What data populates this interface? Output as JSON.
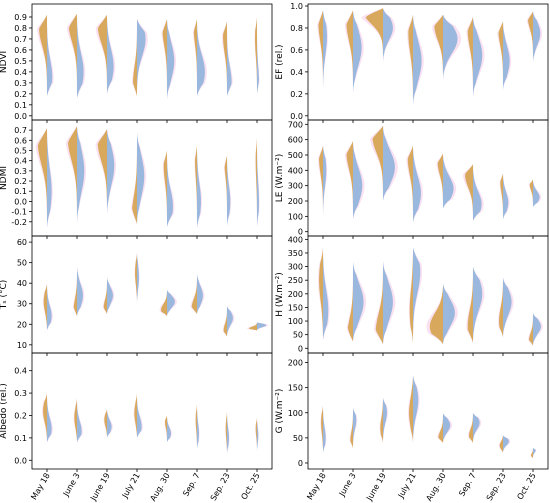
{
  "colors": {
    "upper_half": "#d4a24c",
    "lower_half": "#8fb3db",
    "overlap": "#b8b46e",
    "outline": "#f5c9e6"
  },
  "chart_data": [
    {
      "type": "violin",
      "panel": "NDVI",
      "ylabel": "NDVI",
      "ylim": [
        -0.02,
        1.0
      ],
      "yticks": [
        "0.0",
        "0.1",
        "0.2",
        "0.3",
        "0.4",
        "0.5",
        "0.6",
        "0.7",
        "0.8",
        "0.9"
      ],
      "ytick_values": [
        0,
        0.1,
        0.2,
        0.3,
        0.4,
        0.5,
        0.6,
        0.7,
        0.8,
        0.9
      ],
      "show_x_labels": false,
      "series": [
        {
          "name": "upper",
          "color": "upper_half"
        },
        {
          "name": "lower",
          "color": "lower_half"
        }
      ],
      "violins": [
        {
          "min": 0.18,
          "max": 0.92,
          "mid": 0.48,
          "upper_width": 0.12,
          "upper_peak": 0.8,
          "lower_width": 0.08,
          "lower_peak": 0.35
        },
        {
          "min": 0.16,
          "max": 0.93,
          "mid": 0.55,
          "upper_width": 0.13,
          "upper_peak": 0.85,
          "lower_width": 0.1,
          "lower_peak": 0.4
        },
        {
          "min": 0.2,
          "max": 0.92,
          "mid": 0.55,
          "upper_width": 0.14,
          "upper_peak": 0.82,
          "lower_width": 0.1,
          "lower_peak": 0.45
        },
        {
          "min": 0.18,
          "max": 0.88,
          "mid": 0.35,
          "upper_width": 0.06,
          "upper_peak": 0.3,
          "lower_width": 0.13,
          "lower_peak": 0.7
        },
        {
          "min": 0.15,
          "max": 0.88,
          "mid": 0.65,
          "upper_width": 0.07,
          "upper_peak": 0.8,
          "lower_width": 0.11,
          "lower_peak": 0.5
        },
        {
          "min": 0.18,
          "max": 0.88,
          "mid": 0.6,
          "upper_width": 0.05,
          "upper_peak": 0.8,
          "lower_width": 0.12,
          "lower_peak": 0.4
        },
        {
          "min": 0.18,
          "max": 0.86,
          "mid": 0.6,
          "upper_width": 0.06,
          "upper_peak": 0.72,
          "lower_width": 0.07,
          "lower_peak": 0.3
        },
        {
          "min": 0.2,
          "max": 0.9,
          "mid": 0.55,
          "upper_width": 0.03,
          "upper_peak": 0.7,
          "lower_width": 0.03,
          "lower_peak": 0.3
        }
      ]
    },
    {
      "type": "violin",
      "panel": "EF",
      "ylabel": "EF (rel.)",
      "ylim": [
        -0.02,
        1.0
      ],
      "yticks": [
        "0.0",
        "0.2",
        "0.4",
        "0.6",
        "0.8",
        "1.0"
      ],
      "ytick_values": [
        0,
        0.2,
        0.4,
        0.6,
        0.8,
        1.0
      ],
      "show_x_labels": false,
      "violins": [
        {
          "min": 0.2,
          "max": 0.96,
          "mid": 0.75,
          "upper_width": 0.07,
          "upper_peak": 0.85,
          "lower_width": 0.06,
          "lower_peak": 0.72
        },
        {
          "min": 0.2,
          "max": 0.96,
          "mid": 0.6,
          "upper_width": 0.1,
          "upper_peak": 0.85,
          "lower_width": 0.13,
          "lower_peak": 0.62
        },
        {
          "min": 0.48,
          "max": 0.98,
          "mid": 0.88,
          "upper_width": 0.3,
          "upper_peak": 0.95,
          "lower_width": 0.15,
          "lower_peak": 0.8
        },
        {
          "min": 0.1,
          "max": 0.92,
          "mid": 0.6,
          "upper_width": 0.07,
          "upper_peak": 0.75,
          "lower_width": 0.13,
          "lower_peak": 0.5
        },
        {
          "min": 0.32,
          "max": 0.92,
          "mid": 0.75,
          "upper_width": 0.13,
          "upper_peak": 0.82,
          "lower_width": 0.22,
          "lower_peak": 0.7
        },
        {
          "min": 0.17,
          "max": 0.9,
          "mid": 0.7,
          "upper_width": 0.08,
          "upper_peak": 0.78,
          "lower_width": 0.14,
          "lower_peak": 0.55
        },
        {
          "min": 0.24,
          "max": 0.86,
          "mid": 0.6,
          "upper_width": 0.07,
          "upper_peak": 0.78,
          "lower_width": 0.1,
          "lower_peak": 0.5
        },
        {
          "min": 0.48,
          "max": 0.95,
          "mid": 0.7,
          "upper_width": 0.08,
          "upper_peak": 0.9,
          "lower_width": 0.11,
          "lower_peak": 0.75
        }
      ]
    },
    {
      "type": "violin",
      "panel": "NDMI",
      "ylabel": "NDMI",
      "ylim": [
        -0.32,
        0.78
      ],
      "yticks": [
        "-0.2",
        "-0.1",
        "0.0",
        "0.1",
        "0.2",
        "0.3",
        "0.4",
        "0.5",
        "0.6",
        "0.7"
      ],
      "ytick_values": [
        -0.2,
        -0.1,
        0,
        0.1,
        0.2,
        0.3,
        0.4,
        0.5,
        0.6,
        0.7
      ],
      "show_x_labels": false,
      "violins": [
        {
          "min": -0.26,
          "max": 0.72,
          "mid": 0.4,
          "upper_width": 0.14,
          "upper_peak": 0.58,
          "lower_width": 0.07,
          "lower_peak": 0.1
        },
        {
          "min": -0.22,
          "max": 0.74,
          "mid": 0.4,
          "upper_width": 0.14,
          "upper_peak": 0.62,
          "lower_width": 0.11,
          "lower_peak": 0.3
        },
        {
          "min": -0.14,
          "max": 0.71,
          "mid": 0.45,
          "upper_width": 0.14,
          "upper_peak": 0.58,
          "lower_width": 0.11,
          "lower_peak": 0.35
        },
        {
          "min": -0.22,
          "max": 0.68,
          "mid": -0.05,
          "upper_width": 0.08,
          "upper_peak": -0.15,
          "lower_width": 0.11,
          "lower_peak": 0.25
        },
        {
          "min": -0.25,
          "max": 0.5,
          "mid": 0.2,
          "upper_width": 0.05,
          "upper_peak": 0.35,
          "lower_width": 0.09,
          "lower_peak": -0.05
        },
        {
          "min": -0.26,
          "max": 0.55,
          "mid": 0.2,
          "upper_width": 0.03,
          "upper_peak": 0.4,
          "lower_width": 0.06,
          "lower_peak": 0.0
        },
        {
          "min": -0.24,
          "max": 0.45,
          "mid": 0.2,
          "upper_width": 0.04,
          "upper_peak": 0.4,
          "lower_width": 0.05,
          "lower_peak": 0.0
        },
        {
          "min": -0.25,
          "max": 0.62,
          "mid": 0.2,
          "upper_width": 0.02,
          "upper_peak": 0.4,
          "lower_width": 0.03,
          "lower_peak": 0.0
        }
      ]
    },
    {
      "type": "violin",
      "panel": "LE",
      "ylabel": "LE (W.m⁻²)",
      "ylim": [
        -15,
        715
      ],
      "yticks": [
        "0",
        "100",
        "200",
        "300",
        "400",
        "500",
        "600",
        "700"
      ],
      "ytick_values": [
        0,
        100,
        200,
        300,
        400,
        500,
        600,
        700
      ],
      "show_x_labels": false,
      "violins": [
        {
          "min": 80,
          "max": 560,
          "mid": 350,
          "upper_width": 0.06,
          "upper_peak": 480,
          "lower_width": 0.05,
          "lower_peak": 400
        },
        {
          "min": 80,
          "max": 590,
          "mid": 420,
          "upper_width": 0.1,
          "upper_peak": 520,
          "lower_width": 0.14,
          "lower_peak": 300
        },
        {
          "min": 200,
          "max": 690,
          "mid": 540,
          "upper_width": 0.16,
          "upper_peak": 620,
          "lower_width": 0.18,
          "lower_peak": 420
        },
        {
          "min": 60,
          "max": 560,
          "mid": 330,
          "upper_width": 0.08,
          "upper_peak": 480,
          "lower_width": 0.12,
          "lower_peak": 250
        },
        {
          "min": 150,
          "max": 510,
          "mid": 350,
          "upper_width": 0.08,
          "upper_peak": 450,
          "lower_width": 0.16,
          "lower_peak": 280
        },
        {
          "min": 70,
          "max": 440,
          "mid": 280,
          "upper_width": 0.12,
          "upper_peak": 370,
          "lower_width": 0.13,
          "lower_peak": 180
        },
        {
          "min": 80,
          "max": 380,
          "mid": 220,
          "upper_width": 0.04,
          "upper_peak": 320,
          "lower_width": 0.08,
          "lower_peak": 190
        },
        {
          "min": 160,
          "max": 340,
          "mid": 260,
          "upper_width": 0.05,
          "upper_peak": 310,
          "lower_width": 0.1,
          "lower_peak": 225
        }
      ]
    },
    {
      "type": "violin",
      "panel": "Ts",
      "ylabel": "Tₛ (°C)",
      "ylim": [
        7,
        62
      ],
      "yticks": [
        "10",
        "20",
        "30",
        "40",
        "50",
        "60"
      ],
      "ytick_values": [
        10,
        20,
        30,
        40,
        50,
        60
      ],
      "show_x_labels": false,
      "violins": [
        {
          "min": 17,
          "max": 40,
          "mid": 26,
          "upper_width": 0.05,
          "upper_peak": 31,
          "lower_width": 0.07,
          "lower_peak": 24
        },
        {
          "min": 24,
          "max": 49,
          "mid": 31,
          "upper_width": 0.05,
          "upper_peak": 27,
          "lower_width": 0.09,
          "lower_peak": 34
        },
        {
          "min": 25,
          "max": 43,
          "mid": 30,
          "upper_width": 0.05,
          "upper_peak": 28,
          "lower_width": 0.09,
          "lower_peak": 34
        },
        {
          "min": 30,
          "max": 55,
          "mid": 37,
          "upper_width": 0.03,
          "upper_peak": 45,
          "lower_width": 0.03,
          "lower_peak": 43
        },
        {
          "min": 24,
          "max": 37,
          "mid": 29,
          "upper_width": 0.09,
          "upper_peak": 27,
          "lower_width": 0.12,
          "lower_peak": 31
        },
        {
          "min": 25,
          "max": 45,
          "mid": 30,
          "upper_width": 0.08,
          "upper_peak": 28,
          "lower_width": 0.09,
          "lower_peak": 34
        },
        {
          "min": 14,
          "max": 29,
          "mid": 21,
          "upper_width": 0.05,
          "upper_peak": 17,
          "lower_width": 0.09,
          "lower_peak": 23
        },
        {
          "min": 17,
          "max": 21,
          "mid": 19,
          "upper_width": 0.12,
          "upper_peak": 18,
          "lower_width": 0.14,
          "lower_peak": 19.5
        }
      ]
    },
    {
      "type": "violin",
      "panel": "H",
      "ylabel": "H (W.m⁻²)",
      "ylim": [
        -10,
        405
      ],
      "yticks": [
        "0",
        "50",
        "100",
        "150",
        "200",
        "250",
        "300",
        "350",
        "400"
      ],
      "ytick_values": [
        0,
        50,
        100,
        150,
        200,
        250,
        300,
        350,
        400
      ],
      "show_x_labels": false,
      "violins": [
        {
          "min": 30,
          "max": 370,
          "mid": 140,
          "upper_width": 0.06,
          "upper_peak": 250,
          "lower_width": 0.08,
          "lower_peak": 140
        },
        {
          "min": 25,
          "max": 320,
          "mid": 90,
          "upper_width": 0.09,
          "upper_peak": 40,
          "lower_width": 0.16,
          "lower_peak": 170
        },
        {
          "min": 15,
          "max": 320,
          "mid": 110,
          "upper_width": 0.11,
          "upper_peak": 60,
          "lower_width": 0.15,
          "lower_peak": 170
        },
        {
          "min": 20,
          "max": 370,
          "mid": 240,
          "upper_width": 0.05,
          "upper_peak": 140,
          "lower_width": 0.11,
          "lower_peak": 280
        },
        {
          "min": 15,
          "max": 240,
          "mid": 110,
          "upper_width": 0.2,
          "upper_peak": 80,
          "lower_width": 0.18,
          "lower_peak": 130
        },
        {
          "min": 20,
          "max": 300,
          "mid": 110,
          "upper_width": 0.08,
          "upper_peak": 80,
          "lower_width": 0.14,
          "lower_peak": 200
        },
        {
          "min": 40,
          "max": 260,
          "mid": 110,
          "upper_width": 0.06,
          "upper_peak": 100,
          "lower_width": 0.13,
          "lower_peak": 170
        },
        {
          "min": 10,
          "max": 130,
          "mid": 60,
          "upper_width": 0.06,
          "upper_peak": 30,
          "lower_width": 0.12,
          "lower_peak": 80
        }
      ]
    },
    {
      "type": "violin",
      "panel": "Albedo",
      "ylabel": "Albedo (rel.)",
      "ylim": [
        -0.03,
        0.47
      ],
      "yticks": [
        "0.0",
        "0.1",
        "0.2",
        "0.3",
        "0.4"
      ],
      "ytick_values": [
        0,
        0.1,
        0.2,
        0.3,
        0.4
      ],
      "show_x_labels": true,
      "categories": [
        "May 18",
        "June 3",
        "June 19",
        "July 21",
        "Aug. 30",
        "Sep. 7",
        "Sep. 23",
        "Oct. 25"
      ],
      "violins": [
        {
          "min": 0.08,
          "max": 0.3,
          "mid": 0.17,
          "upper_width": 0.06,
          "upper_peak": 0.22,
          "lower_width": 0.07,
          "lower_peak": 0.14
        },
        {
          "min": 0.08,
          "max": 0.28,
          "mid": 0.15,
          "upper_width": 0.04,
          "upper_peak": 0.19,
          "lower_width": 0.07,
          "lower_peak": 0.13
        },
        {
          "min": 0.1,
          "max": 0.23,
          "mid": 0.16,
          "upper_width": 0.04,
          "upper_peak": 0.18,
          "lower_width": 0.07,
          "lower_peak": 0.15
        },
        {
          "min": 0.1,
          "max": 0.3,
          "mid": 0.18,
          "upper_width": 0.04,
          "upper_peak": 0.21,
          "lower_width": 0.07,
          "lower_peak": 0.15
        },
        {
          "min": 0.08,
          "max": 0.2,
          "mid": 0.14,
          "upper_width": 0.03,
          "upper_peak": 0.17,
          "lower_width": 0.06,
          "lower_peak": 0.12
        },
        {
          "min": 0.05,
          "max": 0.25,
          "mid": 0.13,
          "upper_width": 0.02,
          "upper_peak": 0.18,
          "lower_width": 0.03,
          "lower_peak": 0.12
        },
        {
          "min": 0.03,
          "max": 0.22,
          "mid": 0.12,
          "upper_width": 0.02,
          "upper_peak": 0.14,
          "lower_width": 0.03,
          "lower_peak": 0.1
        },
        {
          "min": 0.04,
          "max": 0.19,
          "mid": 0.12,
          "upper_width": 0.02,
          "upper_peak": 0.14,
          "lower_width": 0.02,
          "lower_peak": 0.11
        }
      ]
    },
    {
      "type": "violin",
      "panel": "G",
      "ylabel": "G (W.m⁻²)",
      "ylim": [
        -8,
        215
      ],
      "yticks": [
        "0",
        "50",
        "100",
        "150",
        "200"
      ],
      "ytick_values": [
        0,
        50,
        100,
        150,
        200
      ],
      "show_x_labels": true,
      "categories": [
        "May 18",
        "June 3",
        "June 19",
        "July 21",
        "Aug. 30",
        "Sep. 7",
        "Sep. 23",
        "Oct. 25"
      ],
      "violins": [
        {
          "min": 20,
          "max": 115,
          "mid": 60,
          "upper_width": 0.03,
          "upper_peak": 80,
          "lower_width": 0.04,
          "lower_peak": 50
        },
        {
          "min": 30,
          "max": 110,
          "mid": 70,
          "upper_width": 0.04,
          "upper_peak": 45,
          "lower_width": 0.05,
          "lower_peak": 85
        },
        {
          "min": 40,
          "max": 130,
          "mid": 80,
          "upper_width": 0.04,
          "upper_peak": 70,
          "lower_width": 0.06,
          "lower_peak": 100
        },
        {
          "min": 40,
          "max": 175,
          "mid": 110,
          "upper_width": 0.06,
          "upper_peak": 100,
          "lower_width": 0.08,
          "lower_peak": 125
        },
        {
          "min": 40,
          "max": 100,
          "mid": 65,
          "upper_width": 0.07,
          "upper_peak": 50,
          "lower_width": 0.11,
          "lower_peak": 75
        },
        {
          "min": 40,
          "max": 100,
          "mid": 65,
          "upper_width": 0.06,
          "upper_peak": 55,
          "lower_width": 0.1,
          "lower_peak": 80
        },
        {
          "min": 20,
          "max": 55,
          "mid": 40,
          "upper_width": 0.05,
          "upper_peak": 35,
          "lower_width": 0.09,
          "lower_peak": 43
        },
        {
          "min": 10,
          "max": 30,
          "mid": 20,
          "upper_width": 0.03,
          "upper_peak": 15,
          "lower_width": 0.04,
          "lower_peak": 25
        }
      ]
    }
  ]
}
